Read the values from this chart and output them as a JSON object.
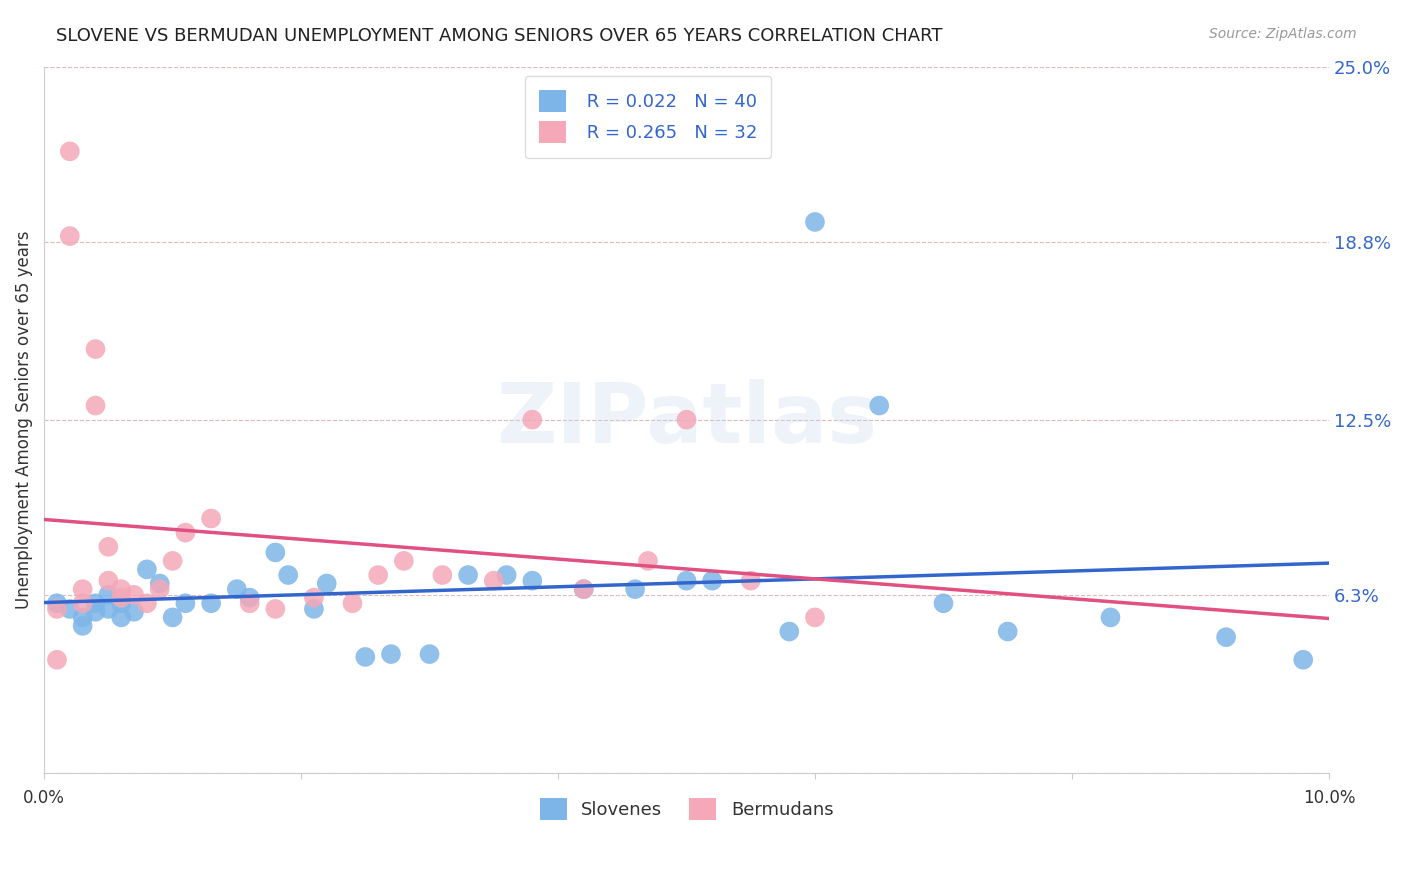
{
  "title": "SLOVENE VS BERMUDAN UNEMPLOYMENT AMONG SENIORS OVER 65 YEARS CORRELATION CHART",
  "source": "Source: ZipAtlas.com",
  "ylabel": "Unemployment Among Seniors over 65 years",
  "xlim": [
    0.0,
    0.1
  ],
  "ylim": [
    0.0,
    0.25
  ],
  "xticks": [
    0.0,
    0.02,
    0.04,
    0.06,
    0.08,
    0.1
  ],
  "xticklabels": [
    "0.0%",
    "",
    "",
    "",
    "",
    "10.0%"
  ],
  "yticks_right": [
    0.0,
    0.063,
    0.125,
    0.188,
    0.25
  ],
  "yticklabels_right": [
    "",
    "6.3%",
    "12.5%",
    "18.8%",
    "25.0%"
  ],
  "legend_label_blue": "Slovenes",
  "legend_label_pink": "Bermudans",
  "blue_color": "#7EB5E8",
  "pink_color": "#F4A8B8",
  "blue_line_color": "#3366CC",
  "pink_line_color": "#E05080",
  "watermark": "ZIPatlas",
  "slovene_x": [
    0.001,
    0.002,
    0.003,
    0.003,
    0.004,
    0.004,
    0.005,
    0.005,
    0.006,
    0.006,
    0.007,
    0.008,
    0.009,
    0.01,
    0.011,
    0.013,
    0.015,
    0.016,
    0.018,
    0.019,
    0.021,
    0.022,
    0.025,
    0.027,
    0.03,
    0.033,
    0.036,
    0.038,
    0.042,
    0.046,
    0.05,
    0.052,
    0.058,
    0.06,
    0.065,
    0.07,
    0.075,
    0.083,
    0.092,
    0.098
  ],
  "slovene_y": [
    0.06,
    0.058,
    0.055,
    0.052,
    0.06,
    0.057,
    0.063,
    0.058,
    0.06,
    0.055,
    0.057,
    0.072,
    0.067,
    0.055,
    0.06,
    0.06,
    0.065,
    0.062,
    0.078,
    0.07,
    0.058,
    0.067,
    0.041,
    0.042,
    0.042,
    0.07,
    0.07,
    0.068,
    0.065,
    0.065,
    0.068,
    0.068,
    0.05,
    0.195,
    0.13,
    0.06,
    0.05,
    0.055,
    0.048,
    0.04
  ],
  "bermudan_x": [
    0.001,
    0.001,
    0.002,
    0.002,
    0.003,
    0.003,
    0.004,
    0.004,
    0.005,
    0.005,
    0.006,
    0.006,
    0.007,
    0.008,
    0.009,
    0.01,
    0.011,
    0.013,
    0.016,
    0.018,
    0.021,
    0.024,
    0.026,
    0.028,
    0.031,
    0.035,
    0.038,
    0.042,
    0.047,
    0.05,
    0.055,
    0.06
  ],
  "bermudan_y": [
    0.058,
    0.04,
    0.22,
    0.19,
    0.065,
    0.06,
    0.15,
    0.13,
    0.08,
    0.068,
    0.065,
    0.062,
    0.063,
    0.06,
    0.065,
    0.075,
    0.085,
    0.09,
    0.06,
    0.058,
    0.062,
    0.06,
    0.07,
    0.075,
    0.07,
    0.068,
    0.125,
    0.065,
    0.075,
    0.125,
    0.068,
    0.055
  ]
}
